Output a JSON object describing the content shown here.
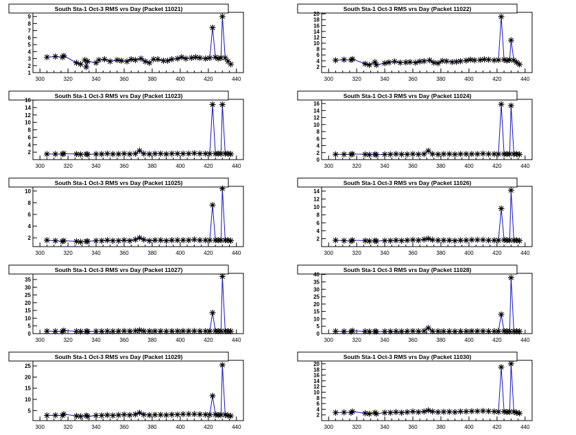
{
  "chart_data": [
    {
      "type": "line",
      "title": "South Sta-1 Oct-3 RMS vrs Day (Packet 11021)",
      "xlim": [
        295,
        445
      ],
      "ylim": [
        1,
        9.6
      ],
      "yticks": [
        1,
        2,
        3,
        4,
        5,
        6,
        7,
        8,
        9
      ],
      "xticks": [
        300,
        320,
        340,
        360,
        380,
        400,
        420,
        440
      ],
      "x": [
        305,
        311,
        316,
        317,
        326,
        329,
        332,
        333,
        334,
        340,
        342,
        346,
        350,
        355,
        358,
        362,
        365,
        368,
        372,
        375,
        378,
        381,
        384,
        388,
        391,
        394,
        398,
        401,
        404,
        408,
        411,
        414,
        418,
        421,
        423,
        425,
        427,
        429,
        430,
        432,
        434,
        436
      ],
      "y": [
        3.2,
        3.3,
        3.2,
        3.4,
        2.4,
        2.2,
        2.8,
        1.8,
        2.6,
        2.4,
        2.8,
        2.9,
        2.6,
        2.8,
        2.7,
        2.6,
        2.9,
        2.8,
        3.0,
        2.6,
        2.4,
        2.9,
        2.9,
        2.7,
        2.7,
        2.9,
        3.0,
        3.2,
        3.0,
        3.1,
        3.2,
        3.1,
        3.0,
        3.1,
        7.4,
        3.2,
        3.0,
        3.1,
        9.0,
        3.1,
        2.6,
        2.2
      ]
    },
    {
      "type": "line",
      "title": "South Sta-1 Oct-3 RMS vrs Day (Packet 11022)",
      "xlim": [
        295,
        445
      ],
      "ylim": [
        0,
        20.5
      ],
      "yticks": [
        2,
        4,
        6,
        8,
        10,
        12,
        14,
        16,
        18,
        20
      ],
      "xticks": [
        300,
        320,
        340,
        360,
        380,
        400,
        420,
        440
      ],
      "x": [
        305,
        311,
        316,
        317,
        326,
        329,
        333,
        334,
        340,
        343,
        347,
        351,
        355,
        358,
        362,
        365,
        368,
        372,
        375,
        378,
        381,
        384,
        388,
        391,
        394,
        398,
        401,
        404,
        408,
        411,
        414,
        418,
        421,
        423,
        425,
        427,
        429,
        430,
        432,
        434,
        436
      ],
      "y": [
        4.2,
        4.4,
        4.3,
        4.6,
        3.0,
        2.6,
        3.6,
        2.6,
        3.2,
        3.5,
        3.8,
        3.4,
        3.5,
        3.6,
        3.4,
        3.8,
        3.9,
        4.2,
        3.4,
        3.2,
        4.0,
        3.9,
        3.6,
        3.7,
        3.9,
        4.1,
        4.4,
        4.2,
        4.3,
        4.5,
        4.4,
        4.2,
        4.3,
        19.0,
        4.4,
        4.1,
        4.3,
        11.0,
        4.2,
        3.5,
        2.8
      ]
    },
    {
      "type": "line",
      "title": "South Sta-1 Oct-3 RMS vrs Day (Packet 11023)",
      "xlim": [
        295,
        445
      ],
      "ylim": [
        0,
        16.2
      ],
      "yticks": [
        2,
        4,
        6,
        8,
        10,
        12,
        14,
        16
      ],
      "xticks": [
        300,
        320,
        340,
        360,
        380,
        400,
        420,
        440
      ],
      "x": [
        305,
        311,
        316,
        317,
        326,
        329,
        333,
        334,
        340,
        344,
        348,
        352,
        356,
        360,
        364,
        368,
        371,
        374,
        378,
        382,
        386,
        390,
        394,
        398,
        402,
        406,
        410,
        414,
        418,
        421,
        423,
        425,
        427,
        429,
        430,
        432,
        434,
        436
      ],
      "y": [
        1.5,
        1.5,
        1.5,
        1.6,
        1.5,
        1.4,
        1.5,
        1.4,
        1.5,
        1.5,
        1.6,
        1.5,
        1.5,
        1.6,
        1.5,
        1.6,
        2.4,
        1.6,
        1.5,
        1.6,
        1.6,
        1.5,
        1.6,
        1.6,
        1.6,
        1.6,
        1.7,
        1.6,
        1.6,
        1.6,
        14.8,
        1.6,
        1.6,
        1.6,
        14.8,
        1.6,
        1.6,
        1.5
      ]
    },
    {
      "type": "line",
      "title": "South Sta-1 Oct-3 RMS vrs Day (Packet 11024)",
      "xlim": [
        295,
        445
      ],
      "ylim": [
        0,
        17.2
      ],
      "yticks": [
        0,
        2,
        4,
        6,
        8,
        10,
        12,
        14,
        16
      ],
      "xticks": [
        300,
        320,
        340,
        360,
        380,
        400,
        420,
        440
      ],
      "x": [
        305,
        311,
        316,
        317,
        326,
        329,
        333,
        334,
        340,
        344,
        348,
        352,
        356,
        360,
        364,
        368,
        371,
        374,
        378,
        382,
        386,
        390,
        394,
        398,
        402,
        406,
        410,
        414,
        418,
        421,
        423,
        425,
        427,
        429,
        430,
        432,
        434,
        436
      ],
      "y": [
        1.5,
        1.5,
        1.5,
        1.6,
        1.5,
        1.4,
        1.5,
        1.4,
        1.5,
        1.5,
        1.6,
        1.5,
        1.5,
        1.6,
        1.5,
        1.6,
        2.5,
        1.6,
        1.5,
        1.6,
        1.6,
        1.5,
        1.6,
        1.6,
        1.6,
        1.6,
        1.7,
        1.6,
        1.6,
        1.6,
        15.8,
        1.6,
        1.6,
        1.6,
        15.4,
        1.6,
        1.6,
        1.5
      ]
    },
    {
      "type": "line",
      "title": "South Sta-1 Oct-3 RMS vrs Day (Packet 11025)",
      "xlim": [
        295,
        445
      ],
      "ylim": [
        0.5,
        10.8
      ],
      "yticks": [
        2,
        4,
        6,
        8,
        10
      ],
      "xticks": [
        300,
        320,
        340,
        360,
        380,
        400,
        420,
        440
      ],
      "x": [
        305,
        311,
        316,
        317,
        326,
        329,
        333,
        334,
        340,
        344,
        348,
        352,
        356,
        360,
        364,
        368,
        371,
        374,
        378,
        382,
        386,
        390,
        394,
        398,
        402,
        406,
        410,
        414,
        418,
        421,
        423,
        425,
        427,
        429,
        430,
        432,
        434,
        436
      ],
      "y": [
        1.6,
        1.5,
        1.4,
        1.5,
        1.4,
        1.3,
        1.4,
        1.4,
        1.5,
        1.5,
        1.6,
        1.5,
        1.5,
        1.6,
        1.5,
        1.7,
        2.0,
        1.7,
        1.5,
        1.6,
        1.6,
        1.5,
        1.6,
        1.6,
        1.6,
        1.6,
        1.7,
        1.6,
        1.6,
        1.6,
        7.6,
        1.6,
        1.6,
        1.6,
        10.4,
        1.6,
        1.6,
        1.5
      ]
    },
    {
      "type": "line",
      "title": "South Sta-1 Oct-3 RMS vrs Day (Packet 11026)",
      "xlim": [
        295,
        445
      ],
      "ylim": [
        0,
        15.2
      ],
      "yticks": [
        2,
        4,
        6,
        8,
        10,
        12,
        14
      ],
      "xticks": [
        300,
        320,
        340,
        360,
        380,
        400,
        420,
        440
      ],
      "x": [
        305,
        311,
        316,
        317,
        326,
        329,
        333,
        334,
        340,
        344,
        348,
        352,
        356,
        360,
        364,
        368,
        371,
        374,
        378,
        382,
        386,
        390,
        394,
        398,
        402,
        406,
        410,
        414,
        418,
        421,
        423,
        425,
        427,
        429,
        430,
        432,
        434,
        436
      ],
      "y": [
        1.6,
        1.5,
        1.4,
        1.6,
        1.5,
        1.4,
        1.5,
        1.4,
        1.5,
        1.5,
        1.6,
        1.5,
        1.6,
        1.7,
        1.6,
        1.8,
        2.0,
        1.7,
        1.6,
        1.6,
        1.6,
        1.5,
        1.6,
        1.6,
        1.7,
        1.7,
        1.7,
        1.6,
        1.6,
        1.6,
        9.6,
        1.7,
        1.6,
        1.6,
        14.2,
        1.6,
        1.6,
        1.5
      ]
    },
    {
      "type": "line",
      "title": "South Sta-1 Oct-3 RMS vrs Day (Packet 11027)",
      "xlim": [
        295,
        445
      ],
      "ylim": [
        0,
        39
      ],
      "yticks": [
        0,
        5,
        10,
        15,
        20,
        25,
        30,
        35
      ],
      "xticks": [
        300,
        320,
        340,
        360,
        380,
        400,
        420,
        440
      ],
      "x": [
        305,
        311,
        316,
        317,
        326,
        329,
        333,
        334,
        340,
        344,
        348,
        352,
        356,
        360,
        364,
        368,
        371,
        374,
        378,
        382,
        386,
        390,
        394,
        398,
        402,
        406,
        410,
        414,
        418,
        421,
        423,
        425,
        427,
        429,
        430,
        432,
        434,
        436
      ],
      "y": [
        1.6,
        1.5,
        1.4,
        2.0,
        1.5,
        1.4,
        1.5,
        1.4,
        1.5,
        1.5,
        1.6,
        1.5,
        1.6,
        1.7,
        1.6,
        1.8,
        2.2,
        1.7,
        1.6,
        1.6,
        1.6,
        1.5,
        1.6,
        1.6,
        1.7,
        1.7,
        1.7,
        1.6,
        1.6,
        1.6,
        13.5,
        1.7,
        1.6,
        1.6,
        37.0,
        1.6,
        1.6,
        1.5
      ]
    },
    {
      "type": "line",
      "title": "South Sta-1 Oct-3 RMS vrs Day (Packet 11028)",
      "xlim": [
        295,
        445
      ],
      "ylim": [
        0,
        40.8
      ],
      "yticks": [
        0,
        5,
        10,
        15,
        20,
        25,
        30,
        35,
        40
      ],
      "xticks": [
        300,
        320,
        340,
        360,
        380,
        400,
        420,
        440
      ],
      "x": [
        305,
        311,
        316,
        317,
        326,
        329,
        333,
        334,
        340,
        344,
        348,
        352,
        356,
        360,
        364,
        368,
        371,
        374,
        378,
        382,
        386,
        390,
        394,
        398,
        402,
        406,
        410,
        414,
        418,
        421,
        423,
        425,
        427,
        429,
        430,
        432,
        434,
        436
      ],
      "y": [
        1.6,
        1.5,
        1.4,
        1.9,
        1.5,
        1.4,
        1.5,
        1.4,
        1.5,
        1.5,
        1.6,
        1.5,
        1.6,
        1.7,
        1.6,
        1.8,
        3.8,
        1.7,
        1.6,
        1.6,
        1.6,
        1.5,
        1.6,
        1.6,
        1.7,
        1.7,
        1.7,
        1.6,
        1.6,
        1.6,
        13.0,
        1.7,
        1.6,
        1.6,
        37.8,
        1.6,
        1.6,
        1.5
      ]
    },
    {
      "type": "line",
      "title": "South Sta-1 Oct-3 RMS vrs Day (Packet 11029)",
      "xlim": [
        295,
        445
      ],
      "ylim": [
        0.5,
        27.5
      ],
      "yticks": [
        5,
        10,
        15,
        20,
        25
      ],
      "xticks": [
        300,
        320,
        340,
        360,
        380,
        400,
        420,
        440
      ],
      "x": [
        305,
        311,
        316,
        317,
        326,
        329,
        333,
        334,
        340,
        344,
        348,
        352,
        356,
        360,
        364,
        368,
        371,
        374,
        378,
        382,
        386,
        390,
        394,
        398,
        402,
        406,
        410,
        414,
        418,
        421,
        423,
        425,
        427,
        429,
        430,
        432,
        434,
        436
      ],
      "y": [
        2.8,
        2.9,
        2.8,
        3.4,
        2.6,
        2.4,
        2.8,
        2.4,
        2.8,
        2.8,
        3.0,
        2.8,
        3.0,
        3.2,
        3.0,
        3.3,
        4.0,
        3.2,
        3.0,
        3.1,
        3.1,
        3.0,
        3.2,
        3.2,
        3.4,
        3.4,
        3.4,
        3.3,
        3.2,
        3.1,
        11.6,
        3.2,
        3.0,
        3.1,
        25.4,
        3.1,
        2.8,
        2.6
      ]
    },
    {
      "type": "line",
      "title": "South Sta-1 Oct-3 RMS vrs Day (Packet 11030)",
      "xlim": [
        295,
        445
      ],
      "ylim": [
        0,
        21.2
      ],
      "yticks": [
        2,
        4,
        6,
        8,
        10,
        12,
        14,
        16,
        18,
        20
      ],
      "xticks": [
        300,
        320,
        340,
        360,
        380,
        400,
        420,
        440
      ],
      "x": [
        305,
        311,
        316,
        317,
        326,
        329,
        333,
        334,
        340,
        344,
        348,
        352,
        356,
        360,
        364,
        368,
        371,
        374,
        378,
        382,
        386,
        390,
        394,
        398,
        402,
        406,
        410,
        414,
        418,
        421,
        423,
        425,
        427,
        429,
        430,
        432,
        434,
        436
      ],
      "y": [
        2.8,
        2.9,
        2.8,
        3.2,
        2.6,
        2.4,
        2.8,
        2.4,
        2.8,
        2.8,
        3.0,
        2.8,
        3.0,
        3.2,
        3.0,
        3.2,
        3.6,
        3.2,
        3.0,
        3.1,
        3.1,
        3.0,
        3.2,
        3.2,
        3.3,
        3.3,
        3.4,
        3.3,
        3.2,
        3.1,
        18.8,
        3.2,
        3.0,
        3.1,
        20.0,
        3.1,
        2.8,
        2.6
      ]
    }
  ]
}
